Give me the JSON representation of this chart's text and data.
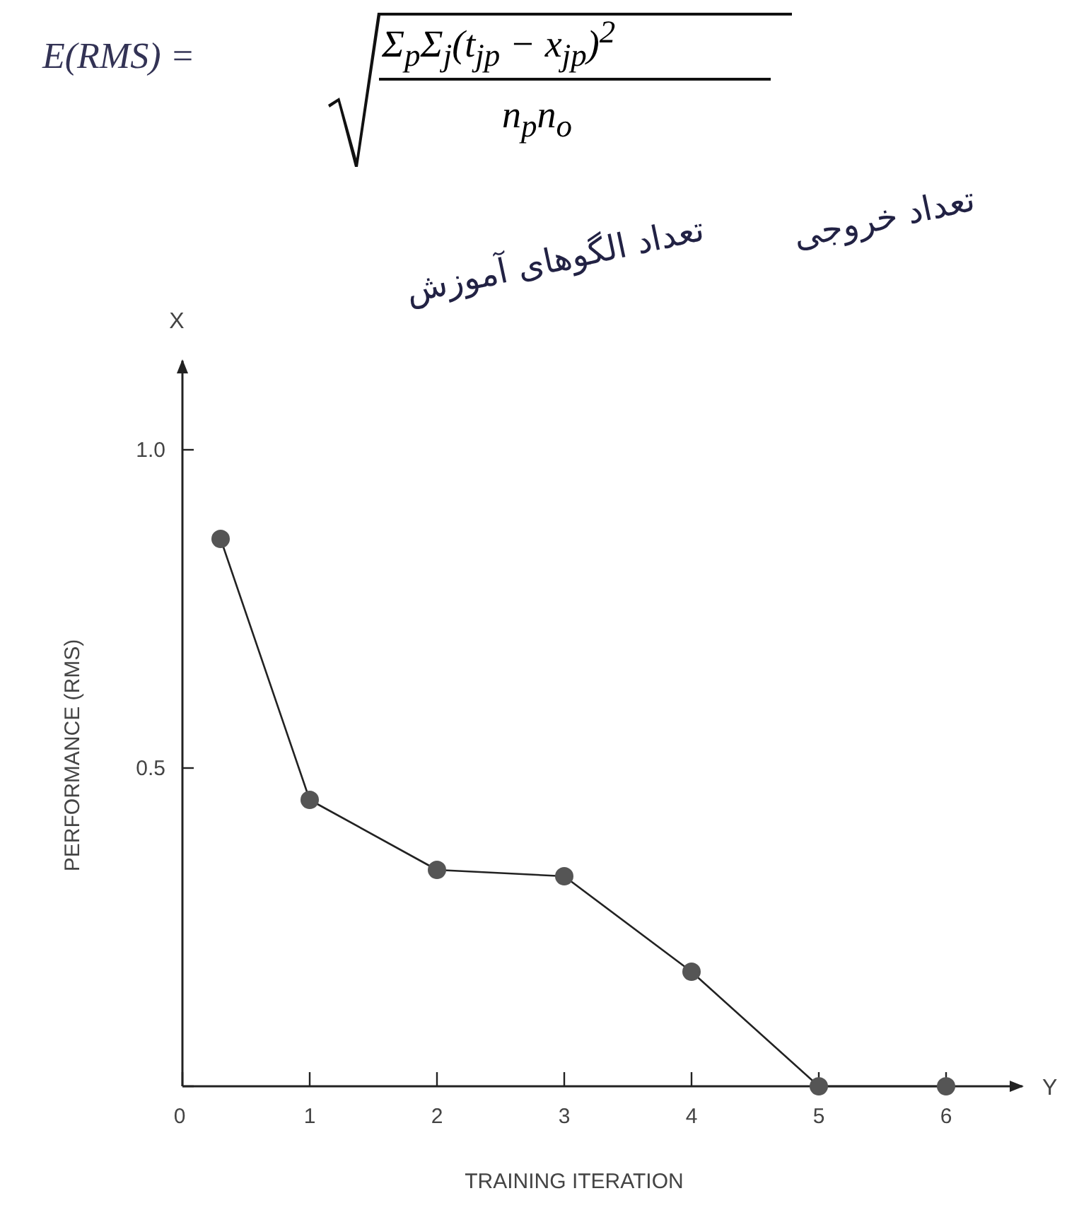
{
  "chart_data": {
    "type": "line",
    "xlabel": "TRAINING ITERATION",
    "ylabel": "PERFORMANCE (RMS)",
    "annotations": [
      "E(RMS) =",
      "Σ$_{p}$Σ$_{j}$(t$_{jp}$ − x$_{jp}$)$^{2}$",
      "n$_{p}$n$_{o}$",
      "تعداد خروجی",
      "تعداد الگوهای آموزش",
      "X",
      "Y"
    ],
    "x": [
      0.3,
      1,
      2,
      3,
      4,
      5,
      6
    ],
    "series": [
      {
        "color": "#555555",
        "values": [
          0.86,
          0.45,
          0.34,
          0.33,
          0.18,
          0,
          0
        ]
      }
    ],
    "xlim": [
      0,
      6.6
    ],
    "ylim": [
      0,
      1.14
    ],
    "xticks": [
      0,
      1,
      2,
      3,
      4,
      5,
      6
    ],
    "yticks": [
      {
        "value": 0,
        "label": null
      },
      0.5,
      {
        "value": 1,
        "label": "1.0"
      }
    ],
    "marker": "circle",
    "line_style": "solid",
    "grid": false
  }
}
